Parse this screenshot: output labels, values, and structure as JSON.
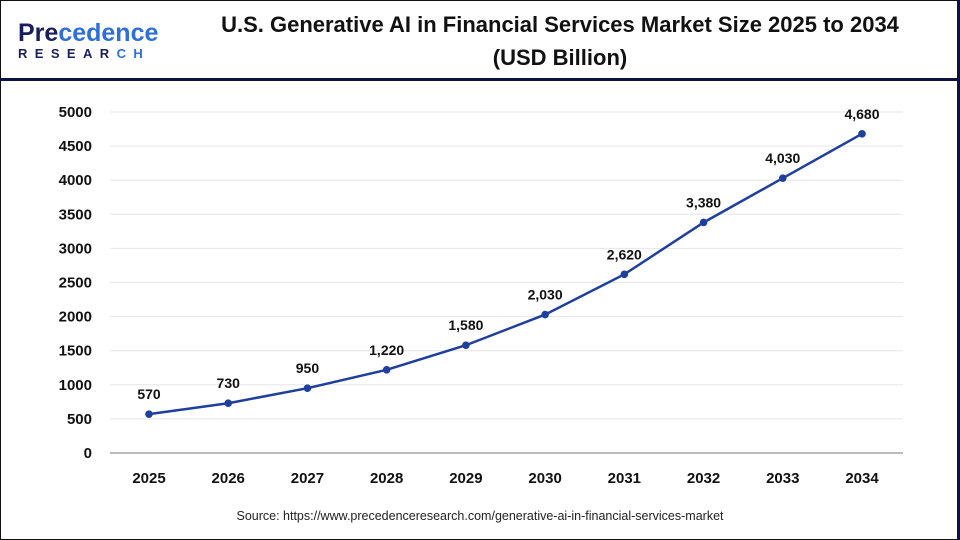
{
  "logo": {
    "line1": "Precedence",
    "line2": "RESEARCH"
  },
  "title": "U.S. Generative AI in Financial Services Market Size 2025 to 2034 (USD Billion)",
  "source": "Source: https://www.precedenceresearch.com/generative-ai-in-financial-services-market",
  "chart_data": {
    "type": "line",
    "title": "U.S. Generative AI in Financial Services Market Size 2025 to 2034 (USD Billion)",
    "categories": [
      "2025",
      "2026",
      "2027",
      "2028",
      "2029",
      "2030",
      "2031",
      "2032",
      "2033",
      "2034"
    ],
    "values": [
      570,
      730,
      950,
      1220,
      1580,
      2030,
      2620,
      3380,
      4030,
      4680
    ],
    "data_labels": [
      "570",
      "730",
      "950",
      "1,220",
      "1,580",
      "2,030",
      "2,620",
      "3,380",
      "4,030",
      "4,680"
    ],
    "yticks": [
      "0",
      "500",
      "1000",
      "1500",
      "2000",
      "2500",
      "3000",
      "3500",
      "4000",
      "4500",
      "5000"
    ],
    "ylim": [
      0,
      5000
    ],
    "grid": true,
    "line_color": "#1f3f9f",
    "xlabel": "",
    "ylabel": ""
  }
}
